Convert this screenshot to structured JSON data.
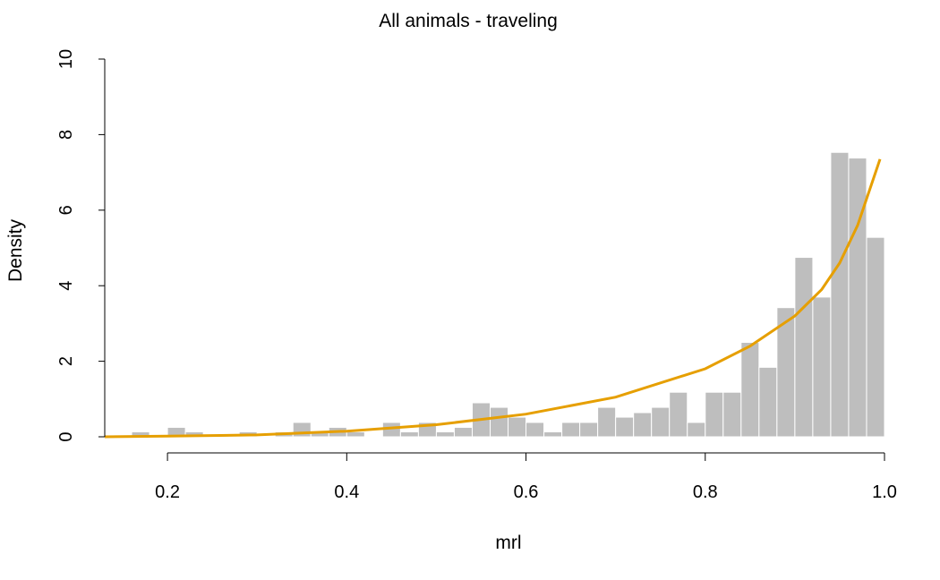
{
  "chart_data": {
    "type": "bar",
    "title": "All animals - traveling",
    "xlabel": "mrl",
    "ylabel": "Density",
    "xlim": [
      0.13,
      1.0
    ],
    "ylim": [
      0,
      10
    ],
    "x_ticks": [
      0.2,
      0.4,
      0.6,
      0.8,
      1.0
    ],
    "x_tick_labels": [
      "0.2",
      "0.4",
      "0.6",
      "0.8",
      "1.0"
    ],
    "y_ticks": [
      0,
      2,
      4,
      6,
      8,
      10
    ],
    "y_tick_labels": [
      "0",
      "2",
      "4",
      "6",
      "8",
      "10"
    ],
    "grid": false,
    "bin_width": 0.02,
    "bins": [
      {
        "x0": 0.16,
        "value": 0.13
      },
      {
        "x0": 0.2,
        "value": 0.25
      },
      {
        "x0": 0.22,
        "value": 0.13
      },
      {
        "x0": 0.28,
        "value": 0.13
      },
      {
        "x0": 0.32,
        "value": 0.13
      },
      {
        "x0": 0.34,
        "value": 0.38
      },
      {
        "x0": 0.36,
        "value": 0.13
      },
      {
        "x0": 0.38,
        "value": 0.25
      },
      {
        "x0": 0.4,
        "value": 0.13
      },
      {
        "x0": 0.44,
        "value": 0.38
      },
      {
        "x0": 0.46,
        "value": 0.13
      },
      {
        "x0": 0.48,
        "value": 0.38
      },
      {
        "x0": 0.5,
        "value": 0.13
      },
      {
        "x0": 0.52,
        "value": 0.25
      },
      {
        "x0": 0.54,
        "value": 0.9
      },
      {
        "x0": 0.56,
        "value": 0.78
      },
      {
        "x0": 0.58,
        "value": 0.52
      },
      {
        "x0": 0.6,
        "value": 0.38
      },
      {
        "x0": 0.62,
        "value": 0.13
      },
      {
        "x0": 0.64,
        "value": 0.38
      },
      {
        "x0": 0.66,
        "value": 0.38
      },
      {
        "x0": 0.68,
        "value": 0.78
      },
      {
        "x0": 0.7,
        "value": 0.52
      },
      {
        "x0": 0.72,
        "value": 0.64
      },
      {
        "x0": 0.74,
        "value": 0.78
      },
      {
        "x0": 0.76,
        "value": 1.18
      },
      {
        "x0": 0.78,
        "value": 0.38
      },
      {
        "x0": 0.8,
        "value": 1.18
      },
      {
        "x0": 0.82,
        "value": 1.18
      },
      {
        "x0": 0.84,
        "value": 2.5
      },
      {
        "x0": 0.86,
        "value": 1.84
      },
      {
        "x0": 0.88,
        "value": 3.42
      },
      {
        "x0": 0.9,
        "value": 4.75
      },
      {
        "x0": 0.92,
        "value": 3.7
      },
      {
        "x0": 0.94,
        "value": 7.53
      },
      {
        "x0": 0.96,
        "value": 7.38
      },
      {
        "x0": 0.98,
        "value": 5.28
      }
    ],
    "density_curve": {
      "x": [
        0.13,
        0.2,
        0.3,
        0.4,
        0.5,
        0.6,
        0.7,
        0.8,
        0.85,
        0.9,
        0.93,
        0.95,
        0.97,
        0.98,
        0.99,
        0.995
      ],
      "y": [
        0.0,
        0.02,
        0.05,
        0.15,
        0.32,
        0.6,
        1.05,
        1.8,
        2.4,
        3.2,
        3.9,
        4.6,
        5.6,
        6.3,
        7.0,
        7.35
      ]
    },
    "colors": {
      "bars": "#bebebe",
      "bar_border": "#ffffff",
      "curve": "#e69f00",
      "axis": "#000000"
    }
  }
}
